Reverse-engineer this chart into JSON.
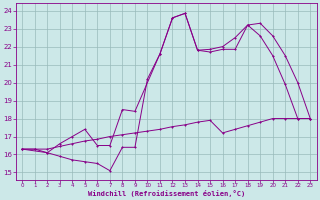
{
  "xlabel": "Windchill (Refroidissement éolien,°C)",
  "xlim": [
    -0.5,
    23.5
  ],
  "ylim": [
    14.6,
    24.4
  ],
  "xticks": [
    0,
    1,
    2,
    3,
    4,
    5,
    6,
    7,
    8,
    9,
    10,
    11,
    12,
    13,
    14,
    15,
    16,
    17,
    18,
    19,
    20,
    21,
    22,
    23
  ],
  "yticks": [
    15,
    16,
    17,
    18,
    19,
    20,
    21,
    22,
    23,
    24
  ],
  "bg_color": "#cce8e8",
  "line_color": "#880088",
  "grid_color": "#99bbbb",
  "line1_x": [
    0,
    1,
    2,
    3,
    4,
    5,
    6,
    7,
    8,
    9,
    10,
    11,
    12,
    13,
    14,
    15,
    16,
    17,
    18,
    19,
    20,
    21,
    22,
    23
  ],
  "line1_y": [
    16.3,
    16.3,
    16.1,
    15.9,
    15.7,
    15.6,
    15.5,
    15.1,
    16.4,
    16.4,
    20.2,
    21.6,
    23.6,
    23.85,
    21.8,
    21.7,
    21.85,
    21.85,
    23.2,
    22.6,
    21.5,
    19.9,
    18.0,
    18.0
  ],
  "line2_x": [
    0,
    2,
    3,
    4,
    5,
    6,
    7,
    8,
    9,
    11,
    12,
    13,
    14,
    15,
    16,
    17,
    18,
    19,
    20,
    21,
    22,
    23
  ],
  "line2_y": [
    16.3,
    16.1,
    16.6,
    17.0,
    17.4,
    16.5,
    16.5,
    18.5,
    18.4,
    21.6,
    23.6,
    23.85,
    21.8,
    21.85,
    22.0,
    22.5,
    23.2,
    23.3,
    22.6,
    21.5,
    20.0,
    18.0
  ],
  "line3_x": [
    0,
    1,
    2,
    3,
    4,
    5,
    6,
    7,
    8,
    9,
    10,
    11,
    12,
    13,
    14,
    15,
    16,
    17,
    18,
    19,
    20,
    21,
    22,
    23
  ],
  "line3_y": [
    16.3,
    16.3,
    16.3,
    16.45,
    16.6,
    16.75,
    16.85,
    17.0,
    17.1,
    17.2,
    17.3,
    17.4,
    17.55,
    17.65,
    17.8,
    17.9,
    17.2,
    17.4,
    17.6,
    17.8,
    18.0,
    18.0,
    18.0,
    18.0
  ]
}
